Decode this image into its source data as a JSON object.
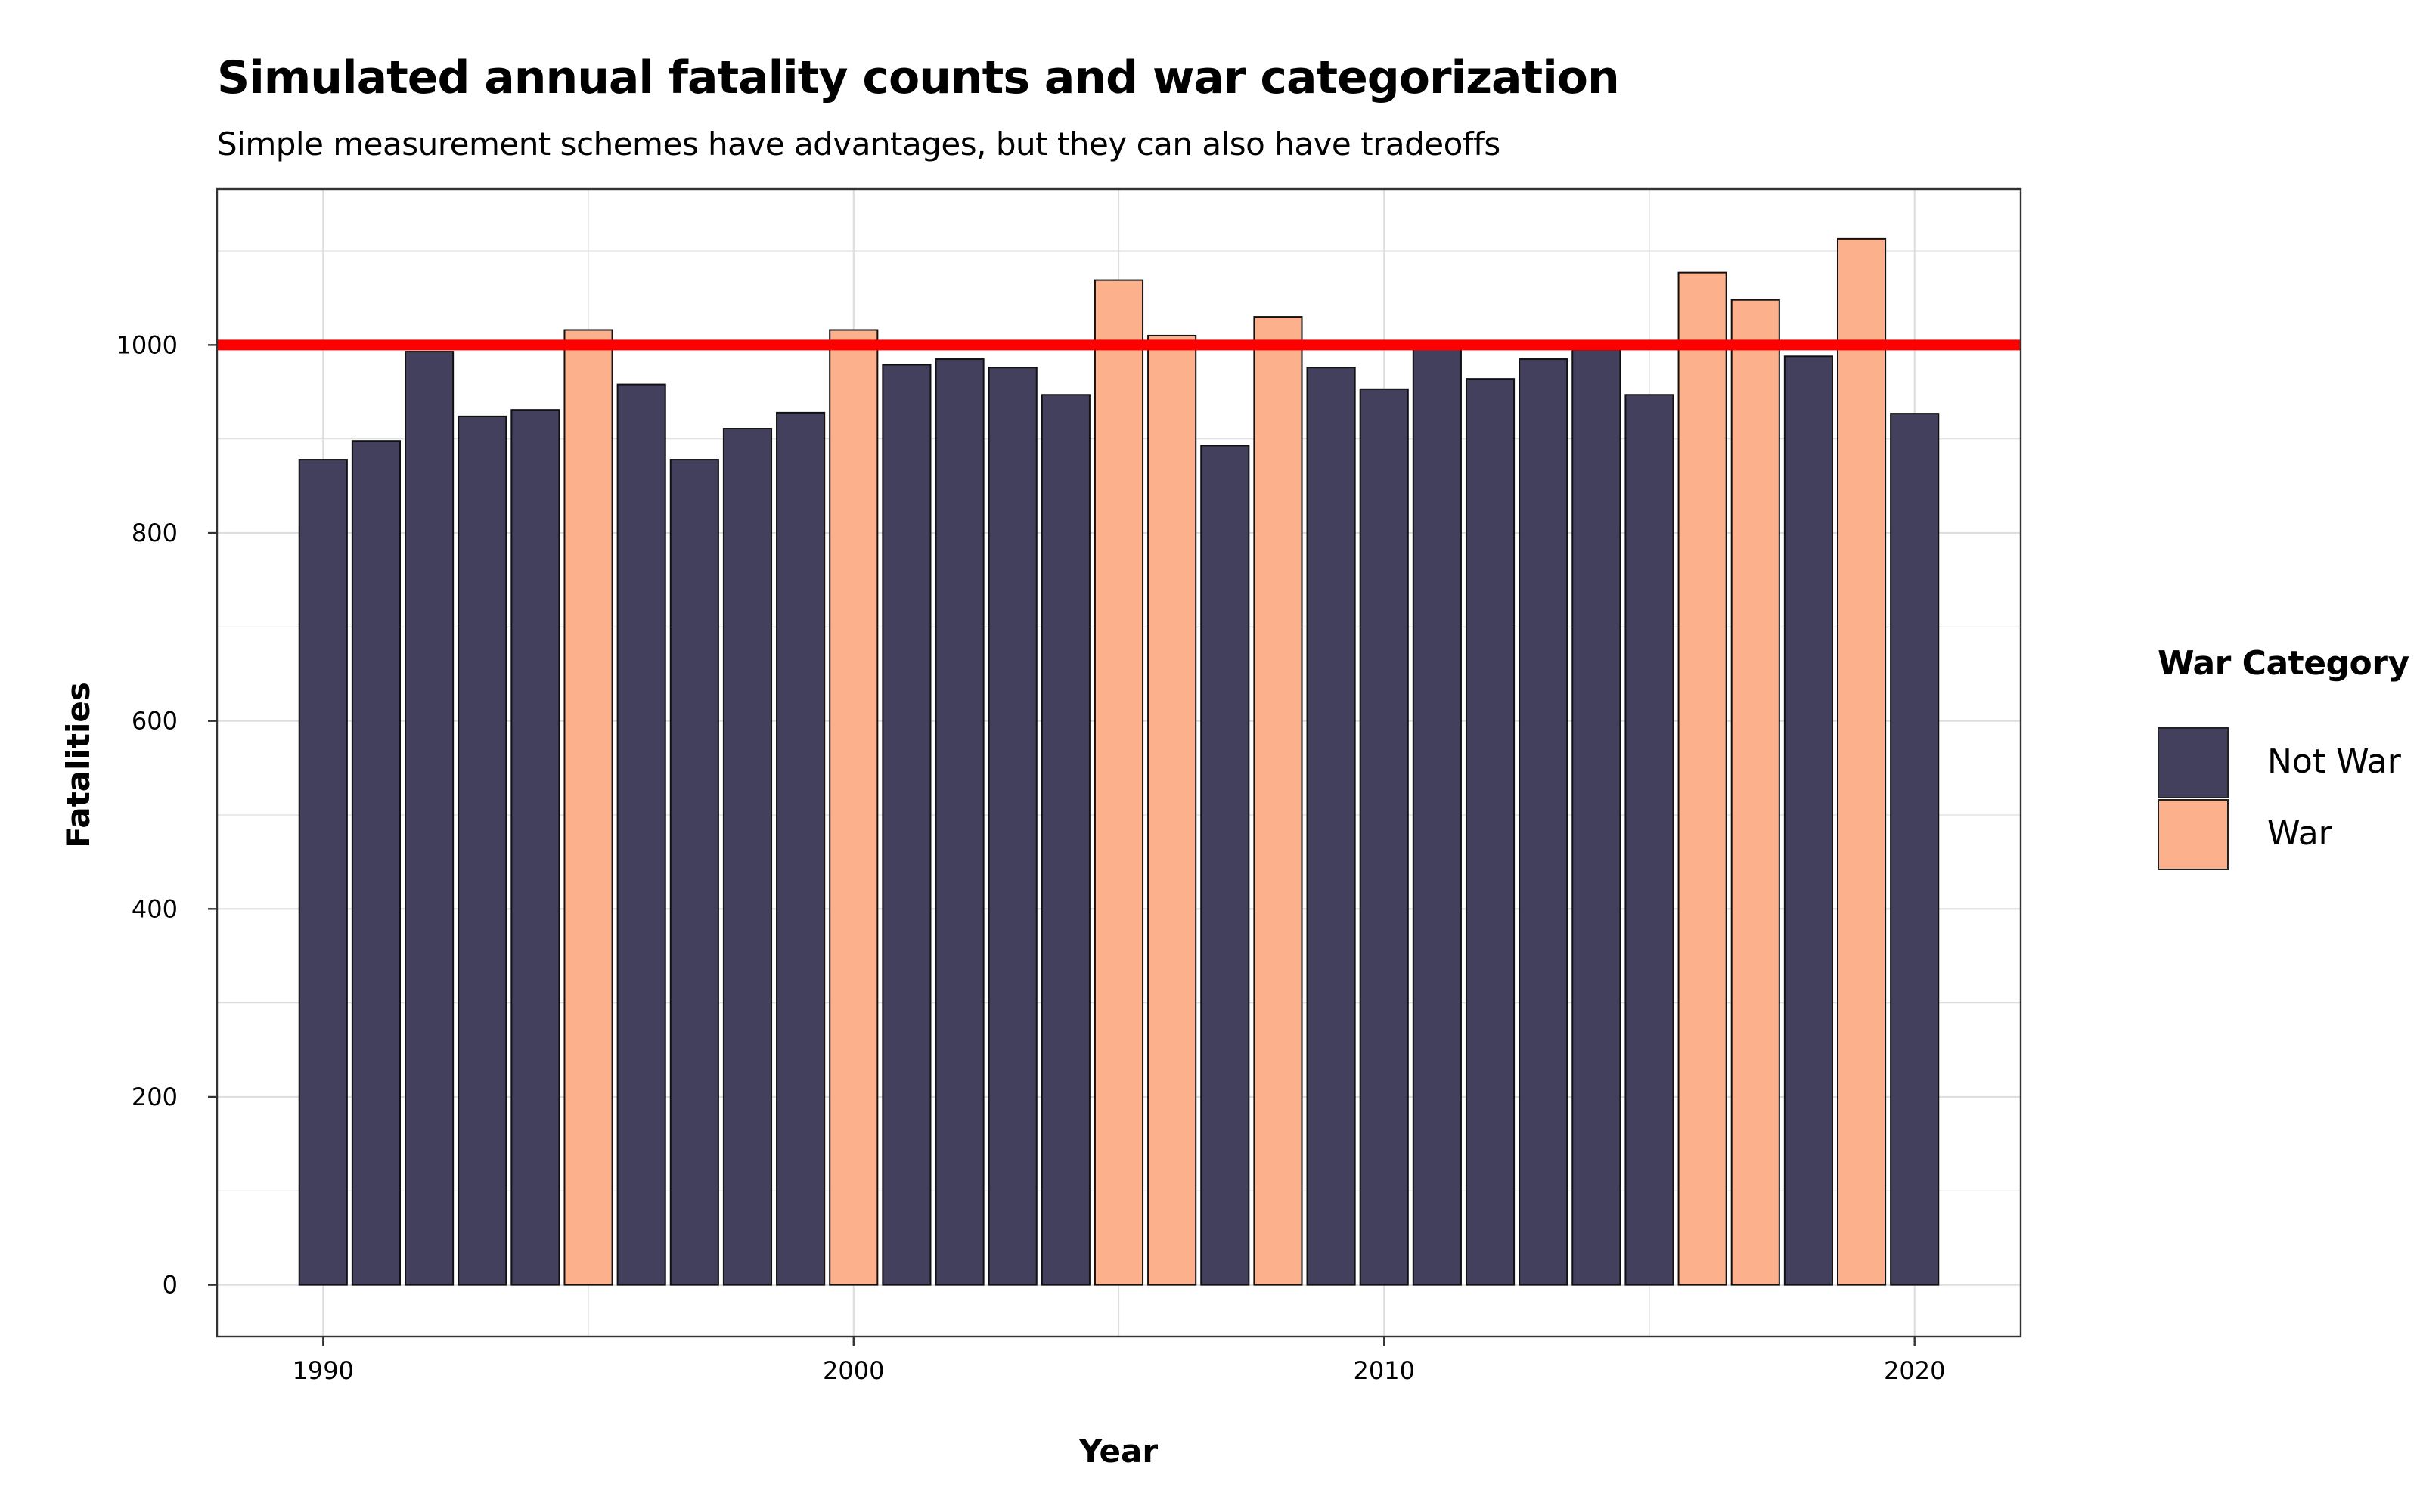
{
  "title": "Simulated annual fatality counts and war categorization",
  "subtitle": "Simple measurement schemes have advantages, but they can also have tradeoffs",
  "colors": {
    "not_war": "#43405e",
    "war": "#fdb08c",
    "threshold": "#ff0000",
    "grid": "#dedede",
    "panel_border": "#333333"
  },
  "legend": {
    "title": "War Category",
    "items": [
      {
        "label": "Not War",
        "color": "#43405e"
      },
      {
        "label": "War",
        "color": "#fdb08c"
      }
    ]
  },
  "chart_data": {
    "type": "bar",
    "title": "Simulated annual fatality counts and war categorization",
    "subtitle": "Simple measurement schemes have advantages, but they can also have tradeoffs",
    "xlabel": "Year",
    "ylabel": "Fatalities",
    "xlim": [
      1988,
      2022
    ],
    "ylim": [
      -55,
      1166
    ],
    "x_ticks": [
      1990,
      2000,
      2010,
      2020
    ],
    "y_ticks": [
      0,
      200,
      400,
      600,
      800,
      1000
    ],
    "threshold": 1000,
    "grid": true,
    "legend_position": "right",
    "x": [
      1990,
      1991,
      1992,
      1993,
      1994,
      1995,
      1996,
      1997,
      1998,
      1999,
      2000,
      2001,
      2002,
      2003,
      2004,
      2005,
      2006,
      2007,
      2008,
      2009,
      2010,
      2011,
      2012,
      2013,
      2014,
      2015,
      2016,
      2017,
      2018,
      2019,
      2020
    ],
    "values": [
      878,
      898,
      993,
      924,
      931,
      1016,
      958,
      878,
      911,
      928,
      1016,
      979,
      985,
      976,
      947,
      1069,
      1010,
      893,
      1030,
      976,
      953,
      1000,
      964,
      985,
      995,
      947,
      1077,
      1048,
      988,
      1113,
      927
    ],
    "category": [
      "Not War",
      "Not War",
      "Not War",
      "Not War",
      "Not War",
      "War",
      "Not War",
      "Not War",
      "Not War",
      "Not War",
      "War",
      "Not War",
      "Not War",
      "Not War",
      "Not War",
      "War",
      "War",
      "Not War",
      "War",
      "Not War",
      "Not War",
      "Not War",
      "Not War",
      "Not War",
      "Not War",
      "Not War",
      "War",
      "War",
      "Not War",
      "War",
      "Not War"
    ]
  }
}
